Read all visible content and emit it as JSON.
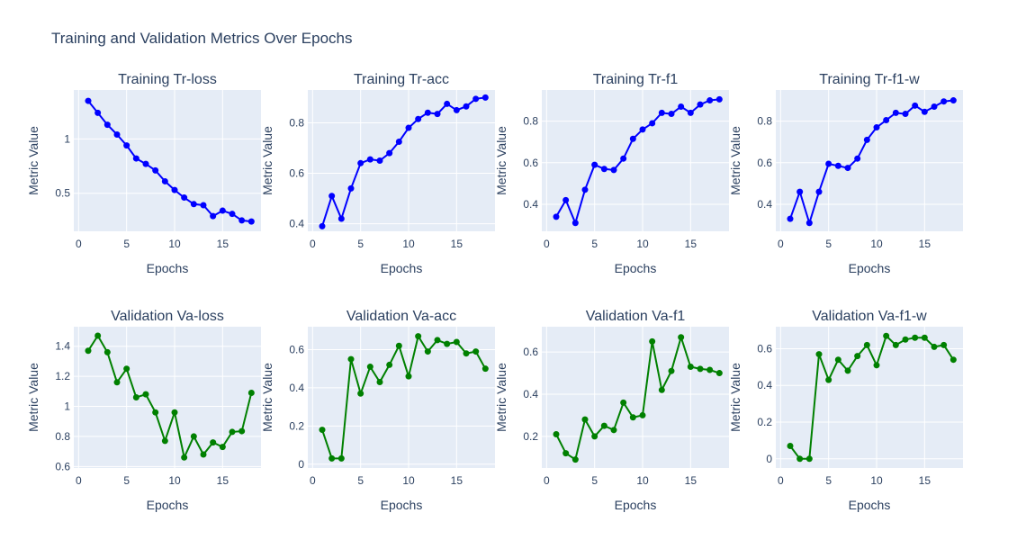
{
  "title": "Training and Validation Metrics Over Epochs",
  "colors": {
    "train": "#0000ff",
    "val": "#008000",
    "plot_bg": "#e5ecf6",
    "grid": "#ffffff",
    "text": "#2a3f5f"
  },
  "chart_data": [
    {
      "type": "line",
      "title": "Training Tr-loss",
      "xlabel": "Epochs",
      "ylabel": "Metric Value",
      "xlim": [
        -0.5,
        19
      ],
      "ylim": [
        0.15,
        1.45
      ],
      "xticks": [
        0,
        5,
        10,
        15
      ],
      "yticks": [
        0.5,
        1
      ],
      "ytick_labels": [
        "0.5",
        "1"
      ],
      "series": [
        {
          "color": "#0000ff",
          "x": [
            1,
            2,
            3,
            4,
            5,
            6,
            7,
            8,
            9,
            10,
            11,
            12,
            13,
            14,
            15,
            16,
            17,
            18
          ],
          "y": [
            1.35,
            1.24,
            1.13,
            1.04,
            0.94,
            0.82,
            0.77,
            0.71,
            0.61,
            0.53,
            0.46,
            0.4,
            0.39,
            0.29,
            0.34,
            0.31,
            0.25,
            0.24
          ]
        }
      ]
    },
    {
      "type": "line",
      "title": "Training Tr-acc",
      "xlabel": "Epochs",
      "ylabel": "Metric Value",
      "xlim": [
        -0.5,
        19
      ],
      "ylim": [
        0.37,
        0.93
      ],
      "xticks": [
        0,
        5,
        10,
        15
      ],
      "yticks": [
        0.4,
        0.6,
        0.8
      ],
      "ytick_labels": [
        "0.4",
        "0.6",
        "0.8"
      ],
      "series": [
        {
          "color": "#0000ff",
          "x": [
            1,
            2,
            3,
            4,
            5,
            6,
            7,
            8,
            9,
            10,
            11,
            12,
            13,
            14,
            15,
            16,
            17,
            18
          ],
          "y": [
            0.39,
            0.51,
            0.42,
            0.54,
            0.64,
            0.655,
            0.65,
            0.68,
            0.725,
            0.78,
            0.815,
            0.84,
            0.835,
            0.875,
            0.85,
            0.865,
            0.895,
            0.9
          ]
        }
      ]
    },
    {
      "type": "line",
      "title": "Training Tr-f1",
      "xlabel": "Epochs",
      "ylabel": "Metric Value",
      "xlim": [
        -0.5,
        19
      ],
      "ylim": [
        0.27,
        0.95
      ],
      "xticks": [
        0,
        5,
        10,
        15
      ],
      "yticks": [
        0.4,
        0.6,
        0.8
      ],
      "ytick_labels": [
        "0.4",
        "0.6",
        "0.8"
      ],
      "series": [
        {
          "color": "#0000ff",
          "x": [
            1,
            2,
            3,
            4,
            5,
            6,
            7,
            8,
            9,
            10,
            11,
            12,
            13,
            14,
            15,
            16,
            17,
            18
          ],
          "y": [
            0.34,
            0.42,
            0.31,
            0.47,
            0.59,
            0.57,
            0.565,
            0.62,
            0.715,
            0.76,
            0.79,
            0.84,
            0.835,
            0.87,
            0.84,
            0.88,
            0.9,
            0.905
          ]
        }
      ]
    },
    {
      "type": "line",
      "title": "Training Tr-f1-w",
      "xlabel": "Epochs",
      "ylabel": "Metric Value",
      "xlim": [
        -0.5,
        19
      ],
      "ylim": [
        0.27,
        0.95
      ],
      "xticks": [
        0,
        5,
        10,
        15
      ],
      "yticks": [
        0.4,
        0.6,
        0.8
      ],
      "ytick_labels": [
        "0.4",
        "0.6",
        "0.8"
      ],
      "series": [
        {
          "color": "#0000ff",
          "x": [
            1,
            2,
            3,
            4,
            5,
            6,
            7,
            8,
            9,
            10,
            11,
            12,
            13,
            14,
            15,
            16,
            17,
            18
          ],
          "y": [
            0.33,
            0.46,
            0.31,
            0.46,
            0.595,
            0.585,
            0.575,
            0.62,
            0.71,
            0.77,
            0.805,
            0.84,
            0.835,
            0.875,
            0.845,
            0.87,
            0.895,
            0.9
          ]
        }
      ]
    },
    {
      "type": "line",
      "title": "Validation Va-loss",
      "xlabel": "Epochs",
      "ylabel": "Metric Value",
      "xlim": [
        -0.5,
        19
      ],
      "ylim": [
        0.59,
        1.53
      ],
      "xticks": [
        0,
        5,
        10,
        15
      ],
      "yticks": [
        0.6,
        0.8,
        1.0,
        1.2,
        1.4
      ],
      "ytick_labels": [
        "0.6",
        "0.8",
        "1",
        "1.2",
        "1.4"
      ],
      "series": [
        {
          "color": "#008000",
          "x": [
            1,
            2,
            3,
            4,
            5,
            6,
            7,
            8,
            9,
            10,
            11,
            12,
            13,
            14,
            15,
            16,
            17,
            18
          ],
          "y": [
            1.37,
            1.47,
            1.36,
            1.16,
            1.25,
            1.06,
            1.08,
            0.96,
            0.77,
            0.96,
            0.66,
            0.8,
            0.68,
            0.76,
            0.73,
            0.83,
            0.835,
            1.09
          ]
        }
      ]
    },
    {
      "type": "line",
      "title": "Validation Va-acc",
      "xlabel": "Epochs",
      "ylabel": "Metric Value",
      "xlim": [
        -0.5,
        19
      ],
      "ylim": [
        -0.02,
        0.72
      ],
      "xticks": [
        0,
        5,
        10,
        15
      ],
      "yticks": [
        0,
        0.2,
        0.4,
        0.6
      ],
      "ytick_labels": [
        "0",
        "0.2",
        "0.4",
        "0.6"
      ],
      "series": [
        {
          "color": "#008000",
          "x": [
            1,
            2,
            3,
            4,
            5,
            6,
            7,
            8,
            9,
            10,
            11,
            12,
            13,
            14,
            15,
            16,
            17,
            18
          ],
          "y": [
            0.18,
            0.03,
            0.03,
            0.55,
            0.37,
            0.51,
            0.43,
            0.52,
            0.62,
            0.46,
            0.67,
            0.59,
            0.65,
            0.63,
            0.64,
            0.58,
            0.59,
            0.5
          ]
        }
      ]
    },
    {
      "type": "line",
      "title": "Validation Va-f1",
      "xlabel": "Epochs",
      "ylabel": "Metric Value",
      "xlim": [
        -0.5,
        19
      ],
      "ylim": [
        0.05,
        0.72
      ],
      "xticks": [
        0,
        5,
        10,
        15
      ],
      "yticks": [
        0.2,
        0.4,
        0.6
      ],
      "ytick_labels": [
        "0.2",
        "0.4",
        "0.6"
      ],
      "series": [
        {
          "color": "#008000",
          "x": [
            1,
            2,
            3,
            4,
            5,
            6,
            7,
            8,
            9,
            10,
            11,
            12,
            13,
            14,
            15,
            16,
            17,
            18
          ],
          "y": [
            0.21,
            0.12,
            0.09,
            0.28,
            0.2,
            0.25,
            0.23,
            0.36,
            0.29,
            0.3,
            0.65,
            0.42,
            0.51,
            0.67,
            0.53,
            0.52,
            0.515,
            0.5
          ]
        }
      ]
    },
    {
      "type": "line",
      "title": "Validation Va-f1-w",
      "xlabel": "Epochs",
      "ylabel": "Metric Value",
      "xlim": [
        -0.5,
        19
      ],
      "ylim": [
        -0.05,
        0.72
      ],
      "xticks": [
        0,
        5,
        10,
        15
      ],
      "yticks": [
        0,
        0.2,
        0.4,
        0.6
      ],
      "ytick_labels": [
        "0",
        "0.2",
        "0.4",
        "0.6"
      ],
      "series": [
        {
          "color": "#008000",
          "x": [
            1,
            2,
            3,
            4,
            5,
            6,
            7,
            8,
            9,
            10,
            11,
            12,
            13,
            14,
            15,
            16,
            17,
            18
          ],
          "y": [
            0.07,
            0.0,
            0.0,
            0.57,
            0.43,
            0.54,
            0.48,
            0.56,
            0.62,
            0.51,
            0.67,
            0.62,
            0.65,
            0.66,
            0.66,
            0.61,
            0.62,
            0.54
          ]
        }
      ]
    }
  ]
}
